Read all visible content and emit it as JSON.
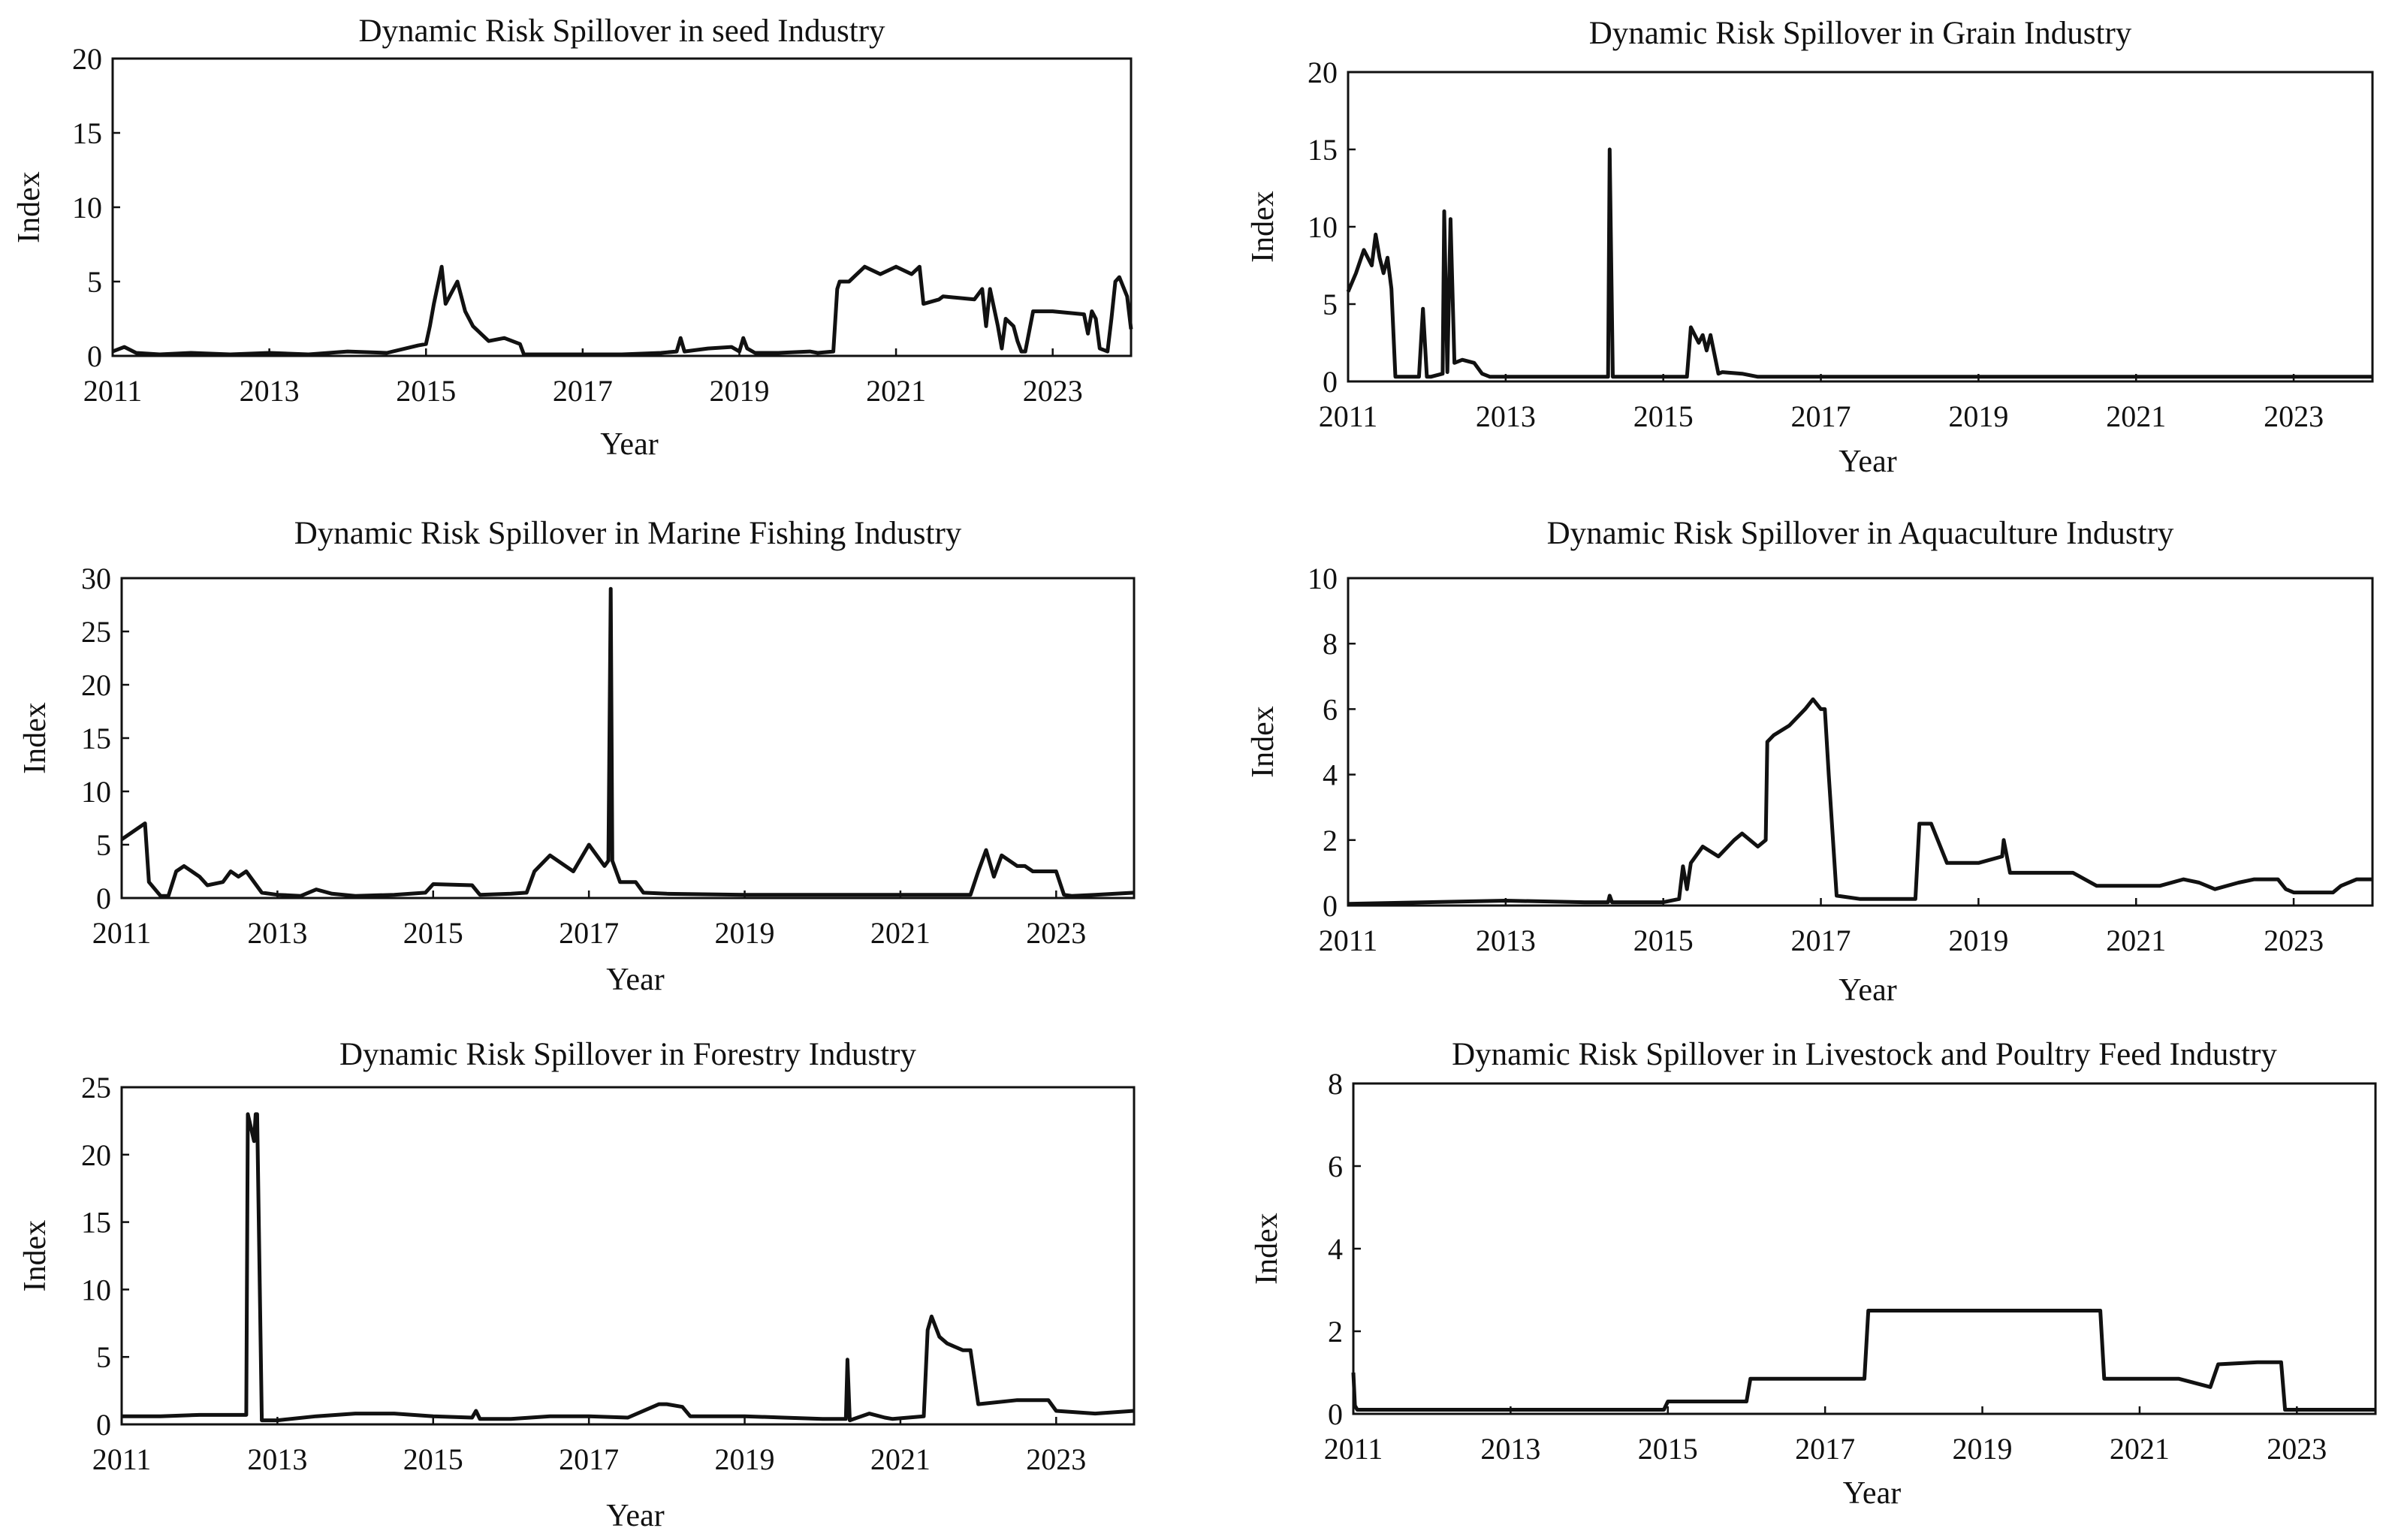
{
  "figure": {
    "line_color": "#111111",
    "background": "#ffffff"
  },
  "chart_data": [
    {
      "type": "line",
      "title": "Dynamic Risk Spillover in seed Industry",
      "xlabel": "Year",
      "ylabel": "Index",
      "xlim": [
        2011,
        2024
      ],
      "ylim": [
        0,
        20
      ],
      "yticks": [
        "0",
        "5",
        "10",
        "15",
        "20"
      ],
      "xticks": [
        "2011",
        "2013",
        "2015",
        "2017",
        "2019",
        "2021",
        "2023"
      ],
      "grid": false,
      "series": [
        {
          "name": "seed",
          "x": [
            2011.0,
            2011.15,
            2011.3,
            2011.6,
            2012.0,
            2012.5,
            2013.0,
            2013.5,
            2014.0,
            2014.5,
            2014.9,
            2015.0,
            2015.05,
            2015.1,
            2015.2,
            2015.25,
            2015.3,
            2015.4,
            2015.5,
            2015.6,
            2015.7,
            2015.8,
            2016.0,
            2016.2,
            2016.25,
            2016.5,
            2017.0,
            2017.5,
            2018.0,
            2018.2,
            2018.25,
            2018.3,
            2018.6,
            2018.9,
            2019.0,
            2019.05,
            2019.1,
            2019.2,
            2019.5,
            2019.9,
            2020.0,
            2020.2,
            2020.25,
            2020.28,
            2020.4,
            2020.6,
            2020.8,
            2021.0,
            2021.2,
            2021.3,
            2021.35,
            2021.55,
            2021.6,
            2022.0,
            2022.1,
            2022.15,
            2022.2,
            2022.3,
            2022.35,
            2022.4,
            2022.5,
            2022.55,
            2022.6,
            2022.65,
            2022.75,
            2023.0,
            2023.4,
            2023.45,
            2023.5,
            2023.55,
            2023.6,
            2023.7,
            2023.75,
            2023.8,
            2023.85,
            2023.95,
            2024.0
          ],
          "values": [
            0.3,
            0.6,
            0.2,
            0.1,
            0.2,
            0.1,
            0.2,
            0.1,
            0.3,
            0.2,
            0.7,
            0.8,
            2.0,
            3.5,
            6.0,
            3.5,
            4.0,
            5.0,
            3.0,
            2.0,
            1.5,
            1.0,
            1.2,
            0.8,
            0.1,
            0.1,
            0.1,
            0.1,
            0.2,
            0.3,
            1.2,
            0.3,
            0.5,
            0.6,
            0.3,
            1.2,
            0.5,
            0.2,
            0.2,
            0.3,
            0.2,
            0.3,
            4.5,
            5.0,
            5.0,
            6.0,
            5.5,
            6.0,
            5.5,
            6.0,
            3.5,
            3.8,
            4.0,
            3.8,
            4.5,
            2.0,
            4.5,
            2.0,
            0.5,
            2.5,
            2.0,
            1.0,
            0.3,
            0.3,
            3.0,
            3.0,
            2.8,
            1.5,
            3.0,
            2.5,
            0.5,
            0.3,
            2.5,
            5.0,
            5.3,
            4.0,
            1.8
          ]
        }
      ]
    },
    {
      "type": "line",
      "title": "Dynamic Risk Spillover in Grain Industry",
      "xlabel": "Year",
      "ylabel": "Index",
      "xlim": [
        2011,
        2024
      ],
      "ylim": [
        0,
        20
      ],
      "yticks": [
        "0",
        "5",
        "10",
        "15",
        "20"
      ],
      "xticks": [
        "2011",
        "2013",
        "2015",
        "2017",
        "2019",
        "2021",
        "2023"
      ],
      "grid": false,
      "series": [
        {
          "name": "grain",
          "x": [
            2011.0,
            2011.1,
            2011.2,
            2011.3,
            2011.35,
            2011.4,
            2011.45,
            2011.5,
            2011.55,
            2011.6,
            2011.65,
            2011.7,
            2011.9,
            2011.95,
            2012.0,
            2012.05,
            2012.2,
            2012.22,
            2012.26,
            2012.3,
            2012.35,
            2012.45,
            2012.6,
            2012.7,
            2012.8,
            2013.0,
            2013.5,
            2014.0,
            2014.3,
            2014.32,
            2014.36,
            2014.4,
            2015.0,
            2015.3,
            2015.35,
            2015.45,
            2015.5,
            2015.55,
            2015.6,
            2015.7,
            2015.75,
            2016.0,
            2016.2,
            2017.0,
            2018.0,
            2019.0,
            2020.0,
            2021.0,
            2022.0,
            2023.0,
            2024.0
          ],
          "values": [
            5.8,
            7.0,
            8.5,
            7.5,
            9.5,
            8.0,
            7.0,
            8.0,
            6.0,
            0.3,
            0.3,
            0.3,
            0.3,
            4.7,
            0.3,
            0.3,
            0.5,
            11.0,
            0.6,
            10.5,
            1.2,
            1.4,
            1.2,
            0.5,
            0.3,
            0.3,
            0.3,
            0.3,
            0.3,
            15.0,
            0.3,
            0.3,
            0.3,
            0.3,
            3.5,
            2.5,
            3.0,
            2.0,
            3.0,
            0.5,
            0.6,
            0.5,
            0.3,
            0.3,
            0.3,
            0.3,
            0.3,
            0.3,
            0.3,
            0.3,
            0.3
          ]
        }
      ]
    },
    {
      "type": "line",
      "title": "Dynamic Risk Spillover in Marine Fishing Industry",
      "xlabel": "Year",
      "ylabel": "Index",
      "xlim": [
        2011,
        2024
      ],
      "ylim": [
        0,
        30
      ],
      "yticks": [
        "0",
        "5",
        "10",
        "15",
        "20",
        "25",
        "30"
      ],
      "xticks": [
        "2011",
        "2013",
        "2015",
        "2017",
        "2019",
        "2021",
        "2023"
      ],
      "grid": false,
      "series": [
        {
          "name": "marine",
          "x": [
            2011.0,
            2011.1,
            2011.2,
            2011.3,
            2011.35,
            2011.5,
            2011.6,
            2011.7,
            2011.8,
            2012.0,
            2012.1,
            2012.3,
            2012.4,
            2012.5,
            2012.6,
            2012.8,
            2013.0,
            2013.3,
            2013.5,
            2013.7,
            2014.0,
            2014.5,
            2014.9,
            2015.0,
            2015.5,
            2015.6,
            2016.0,
            2016.2,
            2016.3,
            2016.5,
            2016.7,
            2016.8,
            2017.0,
            2017.2,
            2017.25,
            2017.28,
            2017.3,
            2017.4,
            2017.6,
            2017.7,
            2018.0,
            2019.0,
            2020.0,
            2021.0,
            2021.9,
            2022.0,
            2022.1,
            2022.2,
            2022.3,
            2022.4,
            2022.5,
            2022.6,
            2022.7,
            2022.8,
            2023.0,
            2023.1,
            2023.2,
            2023.5,
            2024.0
          ],
          "values": [
            5.5,
            6.0,
            6.5,
            7.0,
            1.5,
            0.2,
            0.2,
            2.5,
            3.0,
            2.0,
            1.2,
            1.5,
            2.5,
            2.0,
            2.5,
            0.5,
            0.3,
            0.2,
            0.8,
            0.4,
            0.2,
            0.3,
            0.5,
            1.3,
            1.2,
            0.3,
            0.4,
            0.5,
            2.5,
            4.0,
            3.0,
            2.5,
            5.0,
            3.0,
            3.5,
            29.0,
            3.5,
            1.5,
            1.5,
            0.5,
            0.4,
            0.3,
            0.3,
            0.3,
            0.3,
            2.5,
            4.5,
            2.0,
            4.0,
            3.5,
            3.0,
            3.0,
            2.5,
            2.5,
            2.5,
            0.3,
            0.2,
            0.3,
            0.5
          ]
        }
      ]
    },
    {
      "type": "line",
      "title": "Dynamic Risk Spillover in Aquaculture Industry",
      "xlabel": "Year",
      "ylabel": "Index",
      "xlim": [
        2011,
        2024
      ],
      "ylim": [
        0,
        10
      ],
      "yticks": [
        "0",
        "2",
        "4",
        "6",
        "8",
        "10"
      ],
      "xticks": [
        "2011",
        "2013",
        "2015",
        "2017",
        "2019",
        "2021",
        "2023"
      ],
      "grid": false,
      "series": [
        {
          "name": "aquaculture",
          "x": [
            2011.0,
            2012.0,
            2013.0,
            2014.0,
            2014.3,
            2014.32,
            2014.35,
            2015.0,
            2015.2,
            2015.25,
            2015.3,
            2015.35,
            2015.5,
            2015.7,
            2015.9,
            2016.0,
            2016.2,
            2016.3,
            2016.32,
            2016.4,
            2016.6,
            2016.8,
            2016.9,
            2017.0,
            2017.05,
            2017.1,
            2017.2,
            2017.5,
            2018.0,
            2018.2,
            2018.25,
            2018.4,
            2018.6,
            2019.0,
            2019.3,
            2019.32,
            2019.4,
            2020.0,
            2020.2,
            2020.5,
            2021.0,
            2021.3,
            2021.6,
            2021.8,
            2022.0,
            2022.3,
            2022.5,
            2022.8,
            2022.9,
            2023.0,
            2023.5,
            2023.6,
            2023.8,
            2024.0
          ],
          "values": [
            0.05,
            0.1,
            0.15,
            0.1,
            0.1,
            0.3,
            0.1,
            0.1,
            0.2,
            1.2,
            0.5,
            1.3,
            1.8,
            1.5,
            2.0,
            2.2,
            1.8,
            2.0,
            5.0,
            5.2,
            5.5,
            6.0,
            6.3,
            6.0,
            6.0,
            4.0,
            0.3,
            0.2,
            0.2,
            0.2,
            2.5,
            2.5,
            1.3,
            1.3,
            1.5,
            2.0,
            1.0,
            1.0,
            1.0,
            0.6,
            0.6,
            0.6,
            0.8,
            0.7,
            0.5,
            0.7,
            0.8,
            0.8,
            0.5,
            0.4,
            0.4,
            0.6,
            0.8,
            0.8
          ]
        }
      ]
    },
    {
      "type": "line",
      "title": "Dynamic Risk Spillover in Forestry Industry",
      "xlabel": "Year",
      "ylabel": "Index",
      "xlim": [
        2011,
        2024
      ],
      "ylim": [
        0,
        25
      ],
      "yticks": [
        "0",
        "5",
        "10",
        "15",
        "20",
        "25"
      ],
      "xticks": [
        "2011",
        "2013",
        "2015",
        "2017",
        "2019",
        "2021",
        "2023"
      ],
      "grid": false,
      "series": [
        {
          "name": "forestry",
          "x": [
            2011.0,
            2011.5,
            2012.0,
            2012.5,
            2012.6,
            2012.62,
            2012.7,
            2012.72,
            2012.74,
            2012.8,
            2012.85,
            2013.0,
            2013.5,
            2014.0,
            2014.5,
            2015.0,
            2015.5,
            2015.55,
            2015.6,
            2016.0,
            2016.5,
            2017.0,
            2017.5,
            2017.9,
            2018.0,
            2018.2,
            2018.3,
            2018.5,
            2019.0,
            2019.5,
            2020.0,
            2020.3,
            2020.32,
            2020.35,
            2020.6,
            2020.8,
            2020.9,
            2021.3,
            2021.35,
            2021.4,
            2021.5,
            2021.6,
            2021.8,
            2021.9,
            2022.0,
            2022.5,
            2022.9,
            2023.0,
            2023.5,
            2024.0
          ],
          "values": [
            0.6,
            0.6,
            0.7,
            0.7,
            0.7,
            23.0,
            21.0,
            23.0,
            23.0,
            0.3,
            0.3,
            0.3,
            0.6,
            0.8,
            0.8,
            0.6,
            0.5,
            1.0,
            0.4,
            0.4,
            0.6,
            0.6,
            0.5,
            1.5,
            1.5,
            1.3,
            0.6,
            0.6,
            0.6,
            0.5,
            0.4,
            0.4,
            4.8,
            0.3,
            0.8,
            0.5,
            0.4,
            0.6,
            7.0,
            8.0,
            6.5,
            6.0,
            5.5,
            5.5,
            1.5,
            1.8,
            1.8,
            1.0,
            0.8,
            1.0
          ]
        }
      ]
    },
    {
      "type": "line",
      "title": "Dynamic Risk Spillover in Livestock and Poultry Feed Industry",
      "xlabel": "Year",
      "ylabel": "Index",
      "xlim": [
        2011,
        2024
      ],
      "ylim": [
        0,
        8
      ],
      "yticks": [
        "0",
        "2",
        "4",
        "6",
        "8"
      ],
      "xticks": [
        "2011",
        "2013",
        "2015",
        "2017",
        "2019",
        "2021",
        "2023"
      ],
      "grid": false,
      "series": [
        {
          "name": "livestock",
          "x": [
            2011.0,
            2011.02,
            2011.05,
            2012.0,
            2013.0,
            2014.0,
            2014.95,
            2015.0,
            2015.5,
            2016.0,
            2016.05,
            2016.5,
            2017.0,
            2017.5,
            2017.55,
            2018.0,
            2019.0,
            2020.0,
            2020.5,
            2020.55,
            2021.0,
            2021.5,
            2021.7,
            2021.9,
            2022.0,
            2022.5,
            2022.8,
            2022.85,
            2023.0,
            2023.5,
            2024.0
          ],
          "values": [
            1.0,
            0.2,
            0.1,
            0.1,
            0.1,
            0.1,
            0.1,
            0.3,
            0.3,
            0.3,
            0.85,
            0.85,
            0.85,
            0.85,
            2.5,
            2.5,
            2.5,
            2.5,
            2.5,
            0.85,
            0.85,
            0.85,
            0.75,
            0.65,
            1.2,
            1.25,
            1.25,
            0.1,
            0.1,
            0.1,
            0.1
          ]
        }
      ]
    }
  ]
}
